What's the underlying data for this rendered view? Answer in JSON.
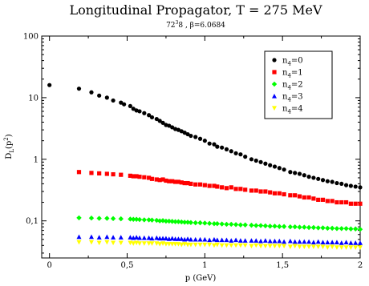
{
  "chart_data": {
    "type": "scatter",
    "title": "Longitudinal Propagator, T = 275 MeV",
    "subtitle": {
      "lattice": "72",
      "lattice_exp": "3",
      "lattice_suffix": "8 , ",
      "beta_symbol": "β",
      "beta_value": "=6.0684"
    },
    "xlabel": "p (GeV)",
    "ylabel": {
      "base": "D",
      "sub": "L",
      "paren": "(p",
      "sup": "2",
      "close": ")"
    },
    "xlim": [
      -0.05,
      2.0
    ],
    "ylim": [
      0.025,
      100
    ],
    "yscale": "log",
    "x_ticks": [
      {
        "value": 0,
        "label": "0"
      },
      {
        "value": 0.5,
        "label": "0,5"
      },
      {
        "value": 1,
        "label": "1"
      },
      {
        "value": 1.5,
        "label": "1,5"
      },
      {
        "value": 2,
        "label": "2"
      }
    ],
    "y_ticks": [
      {
        "value": 0.1,
        "label": "0,1"
      },
      {
        "value": 1,
        "label": "1"
      },
      {
        "value": 10,
        "label": "10"
      },
      {
        "value": 100,
        "label": "100"
      }
    ],
    "legend_position": "top-right",
    "series": [
      {
        "name_main": "n",
        "name_sub": "4",
        "name_rest": "=0",
        "color": "#000000",
        "marker": "circle",
        "x": [
          0.0,
          0.19,
          0.27,
          0.32,
          0.37,
          0.41,
          0.46,
          0.48,
          0.52,
          0.54,
          0.56,
          0.58,
          0.61,
          0.64,
          0.66,
          0.69,
          0.71,
          0.73,
          0.75,
          0.77,
          0.79,
          0.81,
          0.83,
          0.85,
          0.87,
          0.89,
          0.91,
          0.94,
          0.97,
          1.0,
          1.03,
          1.06,
          1.08,
          1.11,
          1.14,
          1.17,
          1.2,
          1.23,
          1.26,
          1.3,
          1.33,
          1.36,
          1.39,
          1.42,
          1.45,
          1.48,
          1.51,
          1.55,
          1.58,
          1.61,
          1.64,
          1.67,
          1.7,
          1.73,
          1.76,
          1.79,
          1.82,
          1.85,
          1.88,
          1.91,
          1.94,
          1.97,
          2.0
        ],
        "y": [
          16.0,
          14.0,
          12.2,
          10.8,
          10.0,
          9.0,
          8.3,
          7.8,
          7.3,
          6.6,
          6.2,
          6.0,
          5.6,
          5.2,
          4.8,
          4.5,
          4.2,
          3.9,
          3.6,
          3.5,
          3.3,
          3.1,
          3.0,
          2.85,
          2.7,
          2.55,
          2.4,
          2.3,
          2.15,
          2.0,
          1.8,
          1.75,
          1.6,
          1.55,
          1.45,
          1.35,
          1.25,
          1.2,
          1.1,
          1.0,
          0.95,
          0.9,
          0.85,
          0.8,
          0.76,
          0.72,
          0.68,
          0.62,
          0.6,
          0.58,
          0.55,
          0.52,
          0.5,
          0.48,
          0.46,
          0.44,
          0.43,
          0.41,
          0.4,
          0.38,
          0.37,
          0.36,
          0.35
        ]
      },
      {
        "name_main": "n",
        "name_sub": "4",
        "name_rest": "=1",
        "color": "#ff0000",
        "marker": "square",
        "x": [
          0.19,
          0.27,
          0.32,
          0.37,
          0.41,
          0.46,
          0.52,
          0.54,
          0.56,
          0.58,
          0.61,
          0.64,
          0.66,
          0.69,
          0.71,
          0.73,
          0.75,
          0.77,
          0.79,
          0.81,
          0.83,
          0.85,
          0.87,
          0.89,
          0.91,
          0.94,
          0.97,
          1.0,
          1.03,
          1.06,
          1.08,
          1.11,
          1.14,
          1.17,
          1.2,
          1.23,
          1.26,
          1.3,
          1.33,
          1.36,
          1.39,
          1.42,
          1.45,
          1.48,
          1.51,
          1.55,
          1.58,
          1.61,
          1.64,
          1.67,
          1.7,
          1.73,
          1.76,
          1.79,
          1.82,
          1.85,
          1.88,
          1.91,
          1.94,
          1.97,
          2.0
        ],
        "y": [
          0.62,
          0.6,
          0.59,
          0.58,
          0.57,
          0.56,
          0.54,
          0.53,
          0.53,
          0.52,
          0.51,
          0.5,
          0.48,
          0.47,
          0.46,
          0.47,
          0.45,
          0.44,
          0.44,
          0.43,
          0.43,
          0.42,
          0.41,
          0.41,
          0.4,
          0.39,
          0.39,
          0.38,
          0.37,
          0.37,
          0.36,
          0.35,
          0.34,
          0.35,
          0.33,
          0.33,
          0.32,
          0.31,
          0.31,
          0.3,
          0.3,
          0.29,
          0.28,
          0.28,
          0.27,
          0.26,
          0.26,
          0.25,
          0.24,
          0.24,
          0.23,
          0.22,
          0.22,
          0.21,
          0.21,
          0.2,
          0.2,
          0.2,
          0.19,
          0.19,
          0.19
        ]
      },
      {
        "name_main": "n",
        "name_sub": "4",
        "name_rest": "=2",
        "color": "#00ff00",
        "marker": "diamond",
        "x": [
          0.19,
          0.27,
          0.32,
          0.37,
          0.41,
          0.46,
          0.52,
          0.54,
          0.56,
          0.58,
          0.61,
          0.64,
          0.66,
          0.69,
          0.71,
          0.73,
          0.75,
          0.77,
          0.79,
          0.81,
          0.83,
          0.85,
          0.87,
          0.89,
          0.91,
          0.94,
          0.97,
          1.0,
          1.03,
          1.06,
          1.08,
          1.11,
          1.14,
          1.17,
          1.2,
          1.23,
          1.26,
          1.3,
          1.33,
          1.36,
          1.39,
          1.42,
          1.45,
          1.48,
          1.51,
          1.55,
          1.58,
          1.61,
          1.64,
          1.67,
          1.7,
          1.73,
          1.76,
          1.79,
          1.82,
          1.85,
          1.88,
          1.91,
          1.94,
          1.97,
          2.0
        ],
        "y": [
          0.112,
          0.111,
          0.11,
          0.11,
          0.109,
          0.108,
          0.107,
          0.106,
          0.106,
          0.105,
          0.104,
          0.104,
          0.103,
          0.102,
          0.1,
          0.101,
          0.099,
          0.099,
          0.098,
          0.097,
          0.097,
          0.096,
          0.095,
          0.095,
          0.094,
          0.093,
          0.093,
          0.092,
          0.091,
          0.09,
          0.09,
          0.089,
          0.088,
          0.088,
          0.087,
          0.086,
          0.086,
          0.085,
          0.084,
          0.084,
          0.083,
          0.082,
          0.082,
          0.081,
          0.081,
          0.08,
          0.08,
          0.079,
          0.079,
          0.078,
          0.078,
          0.077,
          0.077,
          0.076,
          0.076,
          0.075,
          0.075,
          0.075,
          0.074,
          0.074,
          0.073
        ]
      },
      {
        "name_main": "n",
        "name_sub": "4",
        "name_rest": "=3",
        "color": "#0000ff",
        "marker": "triangle",
        "x": [
          0.19,
          0.27,
          0.32,
          0.37,
          0.41,
          0.46,
          0.52,
          0.54,
          0.56,
          0.58,
          0.61,
          0.64,
          0.66,
          0.69,
          0.71,
          0.73,
          0.75,
          0.77,
          0.79,
          0.81,
          0.83,
          0.85,
          0.87,
          0.89,
          0.91,
          0.94,
          0.97,
          1.0,
          1.03,
          1.06,
          1.08,
          1.11,
          1.14,
          1.17,
          1.2,
          1.23,
          1.26,
          1.3,
          1.33,
          1.36,
          1.39,
          1.42,
          1.45,
          1.48,
          1.51,
          1.55,
          1.58,
          1.61,
          1.64,
          1.67,
          1.7,
          1.73,
          1.76,
          1.79,
          1.82,
          1.85,
          1.88,
          1.91,
          1.94,
          1.97,
          2.0
        ],
        "y": [
          0.055,
          0.055,
          0.054,
          0.055,
          0.054,
          0.054,
          0.054,
          0.053,
          0.054,
          0.053,
          0.053,
          0.053,
          0.052,
          0.053,
          0.052,
          0.052,
          0.052,
          0.051,
          0.052,
          0.051,
          0.051,
          0.051,
          0.05,
          0.051,
          0.05,
          0.05,
          0.05,
          0.05,
          0.049,
          0.05,
          0.049,
          0.049,
          0.049,
          0.048,
          0.049,
          0.048,
          0.048,
          0.048,
          0.048,
          0.047,
          0.048,
          0.047,
          0.047,
          0.047,
          0.046,
          0.047,
          0.046,
          0.046,
          0.046,
          0.046,
          0.045,
          0.046,
          0.045,
          0.045,
          0.045,
          0.045,
          0.044,
          0.045,
          0.044,
          0.044,
          0.044
        ]
      },
      {
        "name_main": "n",
        "name_sub": "4",
        "name_rest": "=4",
        "color": "#ffff00",
        "marker": "triangle-down",
        "x": [
          0.19,
          0.27,
          0.32,
          0.37,
          0.41,
          0.46,
          0.52,
          0.54,
          0.56,
          0.58,
          0.61,
          0.64,
          0.66,
          0.69,
          0.71,
          0.73,
          0.75,
          0.77,
          0.79,
          0.81,
          0.83,
          0.85,
          0.87,
          0.89,
          0.91,
          0.94,
          0.97,
          1.0,
          1.03,
          1.06,
          1.08,
          1.11,
          1.14,
          1.17,
          1.2,
          1.23,
          1.26,
          1.3,
          1.33,
          1.36,
          1.39,
          1.42,
          1.45,
          1.48,
          1.51,
          1.55,
          1.58,
          1.61,
          1.64,
          1.67,
          1.7,
          1.73,
          1.76,
          1.79,
          1.82,
          1.85,
          1.88,
          1.91,
          1.94,
          1.97,
          2.0
        ],
        "y": [
          0.045,
          0.045,
          0.044,
          0.045,
          0.044,
          0.044,
          0.044,
          0.043,
          0.044,
          0.043,
          0.043,
          0.043,
          0.043,
          0.043,
          0.042,
          0.043,
          0.042,
          0.042,
          0.042,
          0.042,
          0.042,
          0.041,
          0.042,
          0.041,
          0.041,
          0.041,
          0.041,
          0.041,
          0.041,
          0.04,
          0.041,
          0.04,
          0.04,
          0.04,
          0.04,
          0.04,
          0.04,
          0.039,
          0.04,
          0.039,
          0.039,
          0.039,
          0.039,
          0.039,
          0.039,
          0.038,
          0.039,
          0.038,
          0.038,
          0.038,
          0.038,
          0.038,
          0.038,
          0.037,
          0.038,
          0.037,
          0.037,
          0.037,
          0.037,
          0.037,
          0.037
        ]
      }
    ]
  }
}
